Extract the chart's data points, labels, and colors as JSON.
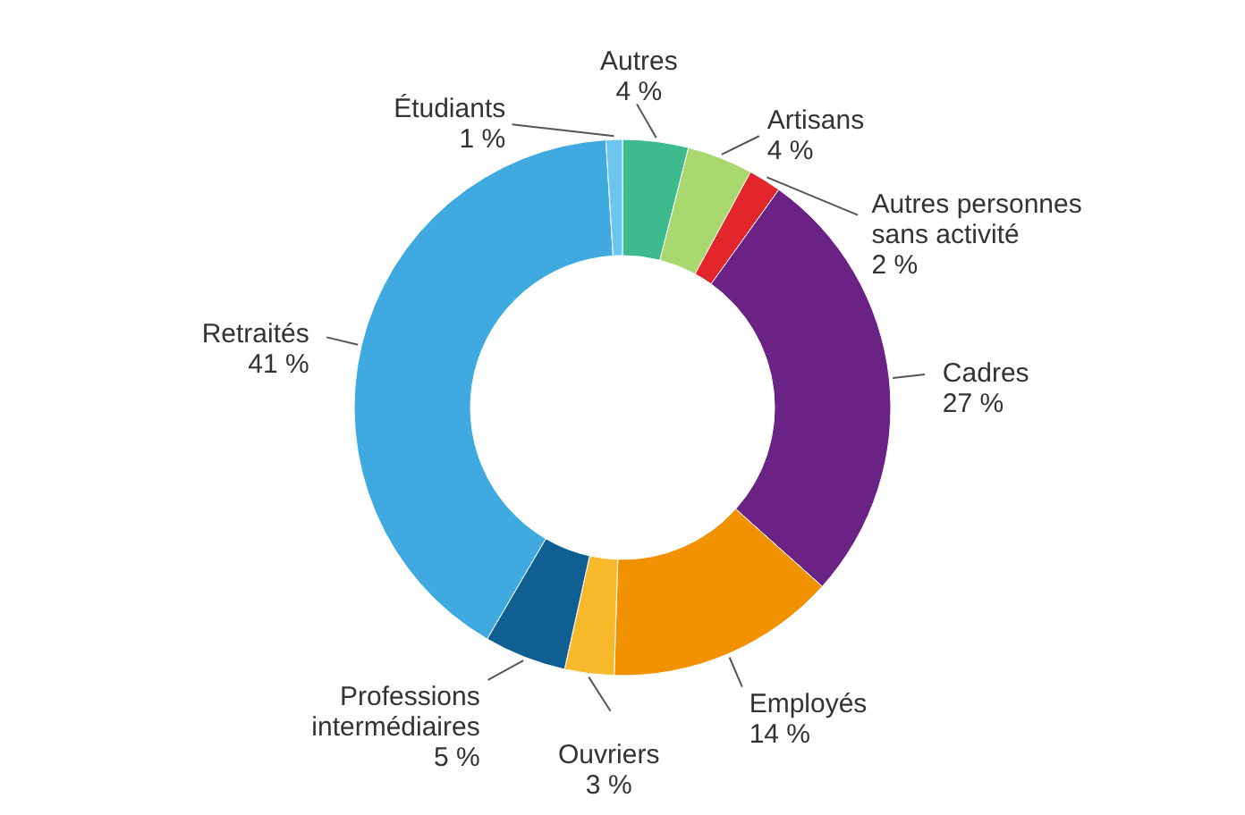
{
  "chart_data": {
    "type": "donut",
    "categories": [
      "Autres",
      "Artisans",
      "Autres personnes sans activité",
      "Cadres",
      "Employés",
      "Ouvriers",
      "Professions intermédiaires",
      "Retraités",
      "Étudiants"
    ],
    "values": [
      4,
      4,
      2,
      27,
      14,
      3,
      5,
      41,
      1
    ],
    "value_labels": [
      "4 %",
      "4 %",
      "2 %",
      "27 %",
      "14 %",
      "3 %",
      "5 %",
      "41 %",
      "1 %"
    ],
    "colors": [
      "#3dbb8f",
      "#a8d86e",
      "#e3262b",
      "#6a2384",
      "#f39200",
      "#f7b92a",
      "#0f5f93",
      "#3fa9e0",
      "#6ac6f0"
    ]
  }
}
